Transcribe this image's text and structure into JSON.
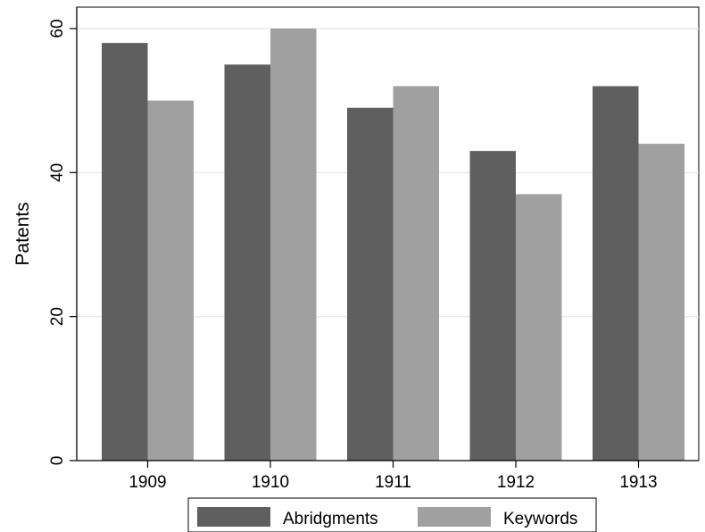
{
  "chart_data": {
    "type": "bar",
    "categories": [
      "1909",
      "1910",
      "1911",
      "1912",
      "1913"
    ],
    "series": [
      {
        "name": "Abridgments",
        "values": [
          58,
          55,
          49,
          43,
          52
        ],
        "color": "#5f5f5f"
      },
      {
        "name": "Keywords",
        "values": [
          50,
          60,
          52,
          37,
          44
        ],
        "color": "#a0a0a0"
      }
    ],
    "title": "",
    "xlabel": "",
    "ylabel": "Patents",
    "ylim": [
      0,
      60
    ],
    "yticks": [
      0,
      20,
      40,
      60
    ],
    "grid": true,
    "legend": "bottom"
  }
}
